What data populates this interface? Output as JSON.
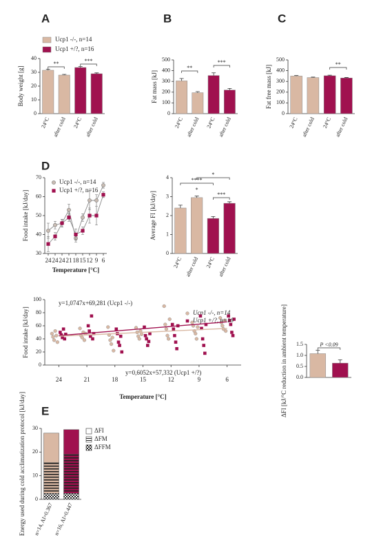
{
  "panel_labels": [
    "A",
    "B",
    "C",
    "D",
    "E"
  ],
  "chart_data": [
    {
      "type": "bar",
      "ylabel": "Body weight [g]",
      "categories": [
        "24°C",
        "after cold",
        "24°C",
        "after cold"
      ],
      "values": [
        31.5,
        28,
        33.5,
        29
      ],
      "errors": [
        0.8,
        0.5,
        0.7,
        0.6
      ],
      "colors": [
        "#d9b8a3",
        "#d9b8a3",
        "#a0114f",
        "#a0114f"
      ],
      "ylim": [
        0,
        40
      ],
      "yticks": [
        0,
        10,
        20,
        30,
        40
      ],
      "annotations": [
        "**",
        "***"
      ],
      "legend": [
        {
          "name": "Ucp1 -/-, n=14",
          "color": "#d9b8a3"
        },
        {
          "name": "Ucp1 +/?, n=16",
          "color": "#a0114f"
        }
      ]
    },
    {
      "type": "bar",
      "ylabel": "Fat mass [kJ]",
      "categories": [
        "24°C",
        "after cold",
        "24°C",
        "after cold"
      ],
      "values": [
        305,
        195,
        355,
        220
      ],
      "errors": [
        22,
        10,
        25,
        15
      ],
      "colors": [
        "#d9b8a3",
        "#d9b8a3",
        "#a0114f",
        "#a0114f"
      ],
      "ylim": [
        0,
        500
      ],
      "yticks": [
        0,
        100,
        200,
        300,
        400,
        500
      ],
      "annotations": [
        "**",
        "***"
      ]
    },
    {
      "type": "bar",
      "ylabel": "Fat free mass [kJ]",
      "categories": [
        "24°C",
        "after cold",
        "24°C",
        "after cold"
      ],
      "values": [
        350,
        336,
        353,
        332
      ],
      "errors": [
        5,
        4,
        5,
        4
      ],
      "colors": [
        "#d9b8a3",
        "#d9b8a3",
        "#a0114f",
        "#a0114f"
      ],
      "ylim": [
        0,
        500
      ],
      "yticks": [
        0,
        100,
        200,
        300,
        400,
        500
      ],
      "annotations": [
        "**"
      ]
    },
    {
      "type": "line",
      "xlabel": "Temperature [°C]",
      "ylabel": "Food intake [kJ/day]",
      "categories": [
        "24",
        "24",
        "24",
        "21",
        "18",
        "15",
        "12",
        "9",
        "6"
      ],
      "series": [
        {
          "name": "Ucp1 -/-, n=14",
          "color": "#c9bcb3",
          "values": [
            42,
            45,
            46,
            53,
            38,
            49,
            58,
            58,
            66
          ],
          "errors": [
            4,
            2,
            2,
            3,
            2,
            2,
            5,
            3,
            1.5
          ]
        },
        {
          "name": "Ucp1 +/?, n=16",
          "color": "#a0114f",
          "values": [
            35,
            39,
            46,
            49,
            40,
            42,
            50,
            50,
            61
          ],
          "errors": [
            4,
            2,
            2,
            2,
            3,
            2,
            4,
            5,
            1.5
          ]
        }
      ],
      "ylim": [
        30,
        70
      ],
      "yticks": [
        30,
        40,
        50,
        60,
        70
      ]
    },
    {
      "type": "bar",
      "ylabel": "Average FI [kJ/day]",
      "categories": [
        "24°C",
        "after cold",
        "24°C",
        "after cold"
      ],
      "values": [
        2.4,
        2.95,
        1.85,
        2.65
      ],
      "errors": [
        0.15,
        0.08,
        0.1,
        0.08
      ],
      "colors": [
        "#d9b8a3",
        "#d9b8a3",
        "#a0114f",
        "#a0114f"
      ],
      "ylim": [
        0,
        4
      ],
      "yticks": [
        0,
        1,
        2,
        3,
        4
      ],
      "annotations": [
        "****",
        "*",
        "*",
        "***"
      ]
    },
    {
      "type": "scatter",
      "xlabel": "Temperature [°C]",
      "ylabel": "Food intake [kJ/day]",
      "xlim": [
        25.5,
        4.5
      ],
      "xticks": [
        24,
        21,
        18,
        15,
        12,
        9,
        6
      ],
      "ylim": [
        0,
        100
      ],
      "yticks": [
        0,
        20,
        40,
        60,
        80,
        100
      ],
      "series": [
        {
          "name": "Ucp1 -/-, n=14",
          "color": "#d9b8a3",
          "x": [
            24,
            24,
            24,
            24,
            24,
            24,
            21,
            21,
            21,
            21,
            21,
            21,
            18,
            18,
            18,
            18,
            18,
            18,
            15,
            15,
            15,
            15,
            15,
            15,
            12,
            12,
            12,
            12,
            12,
            12,
            9,
            9,
            9,
            9,
            9,
            9,
            6,
            6,
            6,
            6,
            6,
            6
          ],
          "values": [
            48,
            43,
            38,
            52,
            45,
            35,
            56,
            45,
            42,
            50,
            38,
            48,
            58,
            46,
            38,
            32,
            42,
            22,
            57,
            50,
            44,
            40,
            52,
            47,
            90,
            62,
            55,
            45,
            40,
            70,
            65,
            60,
            52,
            48,
            40,
            58,
            72,
            65,
            60,
            55,
            68,
            52
          ]
        },
        {
          "name": "Ucp1 +/?, n=16",
          "color": "#a0114f",
          "x": [
            24,
            24,
            24,
            24,
            24,
            24,
            21,
            21,
            21,
            21,
            21,
            21,
            18,
            18,
            18,
            18,
            18,
            18,
            15,
            15,
            15,
            15,
            15,
            15,
            12,
            12,
            12,
            12,
            12,
            12,
            9,
            9,
            9,
            9,
            9,
            9,
            6,
            6,
            6,
            6,
            6,
            6
          ],
          "values": [
            50,
            46,
            42,
            55,
            40,
            47,
            60,
            52,
            44,
            75,
            40,
            48,
            55,
            48,
            35,
            30,
            44,
            20,
            58,
            45,
            40,
            30,
            36,
            48,
            62,
            55,
            45,
            35,
            25,
            60,
            75,
            56,
            40,
            30,
            18,
            62,
            75,
            68,
            62,
            50,
            45,
            70
          ]
        }
      ],
      "fits": [
        {
          "name": "y=1,0747x+69,281 (Ucp1 -/-)",
          "color": "#a0114f",
          "x": [
            24,
            6
          ],
          "values": [
            45,
            66
          ]
        },
        {
          "name": "y=0,6052x+57,332 (Ucp1 +/?)",
          "color": "#d9b8a3",
          "x": [
            24,
            6
          ],
          "values": [
            44,
            56
          ]
        }
      ]
    },
    {
      "type": "bar",
      "ylabel": "ΔFI [kJ/°C reduction in ambient temperature]",
      "values": [
        1.08,
        0.65
      ],
      "errors": [
        0.15,
        0.15
      ],
      "colors": [
        "#d9b8a3",
        "#a0114f"
      ],
      "ylim": [
        0,
        1.5
      ],
      "yticks": [
        {
          "value": 0,
          "label": "0.0"
        },
        {
          "value": 0.5,
          "label": "0.5"
        },
        {
          "value": 1,
          "label": "1.0"
        },
        {
          "value": 1.5,
          "label": "1.5"
        }
      ],
      "annotations": [
        "P <0.09"
      ]
    },
    {
      "type": "stacked_bar",
      "ylabel": "Energy used during cold acclimatization protocol [kJ/day]",
      "categories": [
        "n=14, AI=0.367",
        "n=16, AI=0.447"
      ],
      "colors": [
        "#d9b8a3",
        "#a0114f"
      ],
      "series": [
        {
          "name": "ΔFI",
          "pattern": "plain",
          "values": [
            12.5,
            10.5
          ]
        },
        {
          "name": "ΔFM",
          "pattern": "stripes",
          "values": [
            13,
            16.5
          ]
        },
        {
          "name": "ΔFFM",
          "pattern": "checks",
          "values": [
            2.5,
            2.5
          ]
        }
      ],
      "ylim": [
        0,
        30
      ],
      "yticks": [
        0,
        10,
        20,
        30
      ]
    }
  ]
}
